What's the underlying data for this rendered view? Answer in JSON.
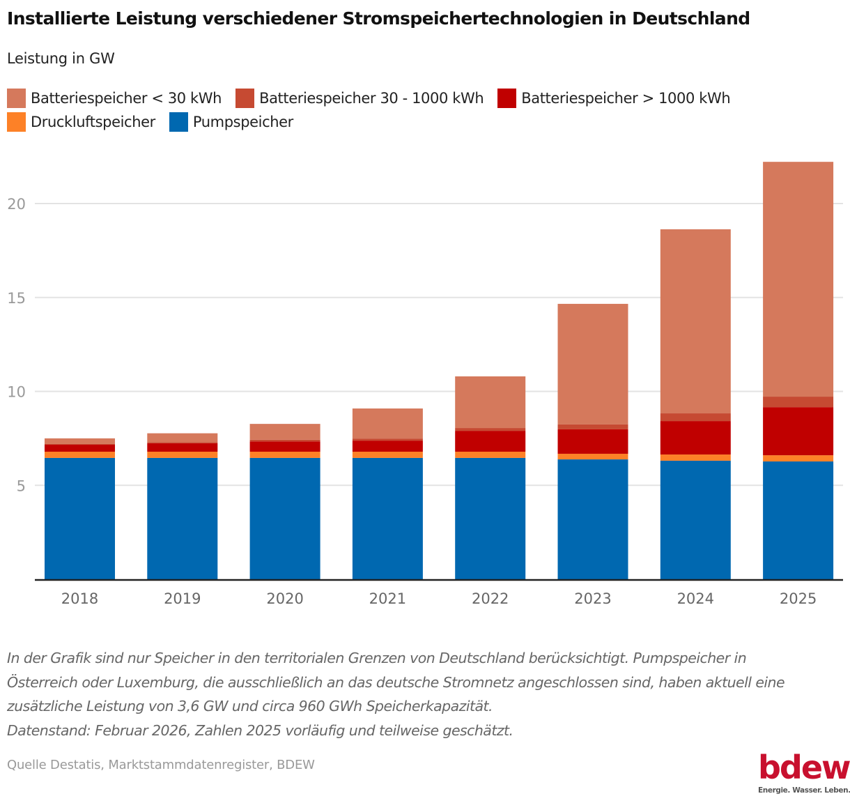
{
  "header": {
    "title": "Installierte Leistung verschiedener Stromspeichertechnologien in Deutschland",
    "subtitle": "Leistung in GW"
  },
  "legend": [
    {
      "label": "Batteriespeicher < 30 kWh",
      "color": "#d5795c"
    },
    {
      "label": "Batteriespeicher 30 - 1000 kWh",
      "color": "#c64a32"
    },
    {
      "label": "Batteriespeicher > 1000 kWh",
      "color": "#c00000"
    },
    {
      "label": "Druckluftspeicher",
      "color": "#fd8127"
    },
    {
      "label": "Pumpspeicher",
      "color": "#0068b0"
    }
  ],
  "chart_data": {
    "type": "bar",
    "stacked": true,
    "title": "Installierte Leistung verschiedener Stromspeichertechnologien in Deutschland",
    "subtitle": "Leistung in GW",
    "xlabel": "",
    "ylabel": "Leistung in GW",
    "ylim": [
      0,
      22.5
    ],
    "yticks": [
      5,
      10,
      15,
      20
    ],
    "grid": true,
    "legend_position": "top",
    "categories": [
      "2018",
      "2019",
      "2020",
      "2021",
      "2022",
      "2023",
      "2024",
      "2025"
    ],
    "series": [
      {
        "name": "Pumpspeicher",
        "color": "#0068b0",
        "values": [
          6.46,
          6.46,
          6.46,
          6.46,
          6.46,
          6.38,
          6.31,
          6.27
        ]
      },
      {
        "name": "Druckluftspeicher",
        "color": "#fd8127",
        "values": [
          0.33,
          0.33,
          0.33,
          0.33,
          0.33,
          0.3,
          0.33,
          0.33
        ]
      },
      {
        "name": "Batteriespeicher > 1000 kWh",
        "color": "#c00000",
        "values": [
          0.37,
          0.45,
          0.55,
          0.59,
          1.11,
          1.3,
          1.78,
          2.56
        ]
      },
      {
        "name": "Batteriespeicher 30 - 1000 kWh",
        "color": "#c64a32",
        "values": [
          0.04,
          0.05,
          0.09,
          0.11,
          0.15,
          0.26,
          0.41,
          0.56
        ]
      },
      {
        "name": "Batteriespeicher < 30 kWh",
        "color": "#d5795c",
        "values": [
          0.3,
          0.48,
          0.84,
          1.6,
          2.75,
          6.42,
          9.8,
          12.5
        ]
      }
    ]
  },
  "footer": {
    "note_lines": [
      "In der Grafik sind nur Speicher in den territorialen Grenzen von Deutschland berücksichtigt. Pumpspeicher in",
      "Österreich oder Luxemburg, die ausschließlich an das deutsche Stromnetz angeschlossen sind, haben aktuell eine",
      "zusätzliche Leistung von 3,6 GW und circa 960 GWh Speicherkapazität.",
      "Datenstand: Februar 2026, Zahlen 2025 vorläufig und teilweise geschätzt."
    ],
    "source": "Quelle Destatis, Marktstammdatenregister, BDEW",
    "logo_word": "bdew",
    "logo_tagline": "Energie. Wasser. Leben."
  }
}
